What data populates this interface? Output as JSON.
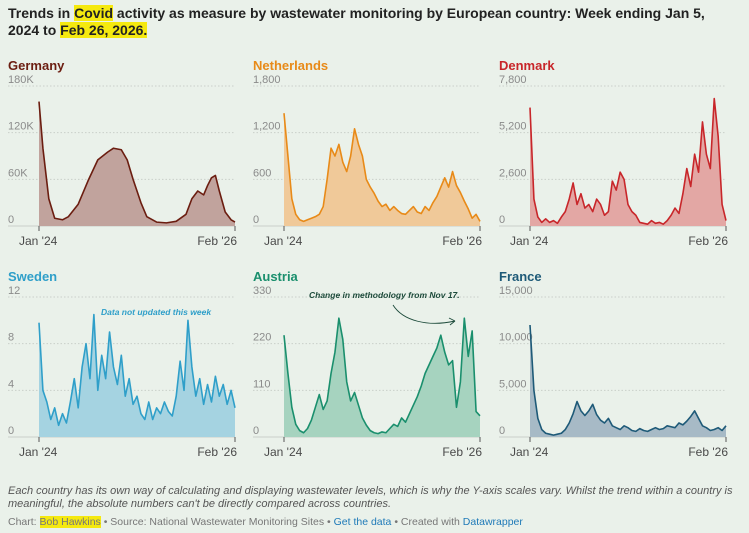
{
  "title": {
    "prefix": "Trends in ",
    "highlight1": "Covid",
    "middle": " activity as measure by wastewater monitoring by European country: Week ending Jan 5, 2024 to ",
    "highlight2": "Feb 26, 2026."
  },
  "note": "Each country has its own way of calculating and displaying wastewater levels, which is why the Y-axis scales vary. Whilst the trend within a country is meaningful, the absolute numbers can't be directly compared across countries.",
  "credit": {
    "chart_label": "Chart: ",
    "author": "Bob Hawkins",
    "source_text": " • Source: National Wastewater Monitoring Sites • ",
    "get_data": "Get the data",
    "created_text": " • Created with ",
    "tool": "Datawrapper"
  },
  "chart_data": [
    {
      "type": "area",
      "title": "Germany",
      "color": "#6b1d10",
      "fill": "#c1a39d",
      "ylim": [
        0,
        180000
      ],
      "yticks": [
        0,
        60000,
        120000,
        180000
      ],
      "ytick_labels": [
        "0",
        "60K",
        "120K",
        "180K"
      ],
      "xlabels": [
        "Jan '24",
        "Feb '26"
      ],
      "x": [
        0,
        0.02,
        0.05,
        0.08,
        0.12,
        0.15,
        0.2,
        0.25,
        0.3,
        0.35,
        0.38,
        0.42,
        0.45,
        0.48,
        0.52,
        0.55,
        0.6,
        0.65,
        0.7,
        0.75,
        0.78,
        0.81,
        0.84,
        0.86,
        0.88,
        0.9,
        0.92,
        0.95,
        0.98,
        1
      ],
      "values": [
        160000,
        100000,
        35000,
        10000,
        8000,
        12000,
        28000,
        58000,
        85000,
        95000,
        100000,
        98000,
        85000,
        60000,
        30000,
        12000,
        5000,
        4000,
        6000,
        15000,
        35000,
        45000,
        40000,
        52000,
        62000,
        65000,
        45000,
        18000,
        8000,
        5000
      ]
    },
    {
      "type": "area",
      "title": "Netherlands",
      "color": "#e88a18",
      "fill": "#f0c999",
      "ylim": [
        0,
        1800
      ],
      "yticks": [
        0,
        600,
        1200,
        1800
      ],
      "ytick_labels": [
        "0",
        "600",
        "1,200",
        "1,800"
      ],
      "xlabels": [
        "Jan '24",
        "Feb '26"
      ],
      "x": [
        0,
        0.02,
        0.04,
        0.06,
        0.08,
        0.1,
        0.12,
        0.14,
        0.16,
        0.18,
        0.2,
        0.22,
        0.24,
        0.26,
        0.28,
        0.3,
        0.32,
        0.34,
        0.36,
        0.38,
        0.4,
        0.42,
        0.44,
        0.46,
        0.48,
        0.5,
        0.52,
        0.54,
        0.56,
        0.58,
        0.6,
        0.62,
        0.64,
        0.66,
        0.68,
        0.7,
        0.72,
        0.74,
        0.76,
        0.78,
        0.8,
        0.82,
        0.84,
        0.86,
        0.88,
        0.9,
        0.92,
        0.94,
        0.96,
        0.98,
        1
      ],
      "values": [
        1450,
        900,
        350,
        150,
        80,
        60,
        80,
        100,
        120,
        150,
        250,
        600,
        1000,
        900,
        1050,
        820,
        700,
        900,
        1250,
        1050,
        900,
        600,
        500,
        420,
        320,
        250,
        280,
        200,
        250,
        200,
        160,
        150,
        200,
        250,
        180,
        160,
        250,
        200,
        300,
        380,
        500,
        620,
        500,
        700,
        520,
        430,
        320,
        220,
        100,
        150,
        60
      ]
    },
    {
      "type": "area",
      "title": "Denmark",
      "color": "#c8262a",
      "fill": "#e3a7a4",
      "ylim": [
        0,
        7800
      ],
      "yticks": [
        0,
        2600,
        5200,
        7800
      ],
      "ytick_labels": [
        "0",
        "2,600",
        "5,200",
        "7,800"
      ],
      "xlabels": [
        "Jan '24",
        "Feb '26"
      ],
      "x": [
        0,
        0.02,
        0.04,
        0.06,
        0.08,
        0.1,
        0.12,
        0.14,
        0.16,
        0.18,
        0.2,
        0.22,
        0.24,
        0.26,
        0.28,
        0.3,
        0.32,
        0.34,
        0.36,
        0.38,
        0.4,
        0.42,
        0.44,
        0.46,
        0.48,
        0.5,
        0.52,
        0.54,
        0.56,
        0.58,
        0.6,
        0.62,
        0.64,
        0.66,
        0.68,
        0.7,
        0.72,
        0.74,
        0.76,
        0.78,
        0.8,
        0.82,
        0.84,
        0.86,
        0.88,
        0.9,
        0.92,
        0.94,
        0.96,
        0.98,
        1
      ],
      "values": [
        6600,
        1500,
        500,
        200,
        400,
        200,
        300,
        150,
        500,
        800,
        1500,
        2400,
        1200,
        1800,
        1000,
        1200,
        800,
        1500,
        1200,
        600,
        800,
        2500,
        2000,
        3000,
        2600,
        1200,
        800,
        600,
        200,
        150,
        100,
        300,
        150,
        200,
        100,
        300,
        600,
        1000,
        700,
        1800,
        3200,
        2200,
        4000,
        3000,
        5800,
        4000,
        3200,
        7100,
        5000,
        1200,
        300
      ]
    },
    {
      "type": "area",
      "title": "Sweden",
      "color": "#2f9fc9",
      "fill": "#a5d3e1",
      "ylim": [
        0,
        12
      ],
      "yticks": [
        0,
        4,
        8,
        12
      ],
      "ytick_labels": [
        "0",
        "4",
        "8",
        "12"
      ],
      "xlabels": [
        "Jan '24",
        "Feb '26"
      ],
      "annotation": "Data not updated this week",
      "x": [
        0,
        0.02,
        0.04,
        0.06,
        0.08,
        0.1,
        0.12,
        0.14,
        0.16,
        0.18,
        0.2,
        0.22,
        0.24,
        0.26,
        0.28,
        0.3,
        0.32,
        0.34,
        0.36,
        0.38,
        0.4,
        0.42,
        0.44,
        0.46,
        0.48,
        0.5,
        0.52,
        0.54,
        0.56,
        0.58,
        0.6,
        0.62,
        0.64,
        0.66,
        0.68,
        0.7,
        0.72,
        0.74,
        0.76,
        0.78,
        0.8,
        0.82,
        0.84,
        0.86,
        0.88,
        0.9,
        0.92,
        0.94,
        0.96,
        0.98,
        1
      ],
      "values": [
        9.8,
        4,
        3,
        1.5,
        2.5,
        1,
        2,
        1.2,
        3,
        5,
        2.5,
        6,
        8,
        5,
        10.5,
        4,
        7,
        5,
        9,
        6,
        4.5,
        7,
        3.5,
        5,
        2.8,
        3.5,
        2,
        1.5,
        3,
        1.5,
        2.5,
        2,
        3,
        2.2,
        1.8,
        3.5,
        6.5,
        4,
        10,
        6,
        3.5,
        5,
        2.8,
        4.5,
        3,
        5.2,
        3.5,
        4.5,
        2.8,
        4,
        2.5
      ]
    },
    {
      "type": "area",
      "title": "Austria",
      "color": "#1a8f6d",
      "fill": "#a6d3bf",
      "ylim": [
        0,
        330
      ],
      "yticks": [
        0,
        110,
        220,
        330
      ],
      "ytick_labels": [
        "0",
        "110",
        "220",
        "330"
      ],
      "xlabels": [
        "Jan '24",
        "Feb '26"
      ],
      "annotation": "Change in methodology from Nov 17.",
      "x": [
        0,
        0.02,
        0.04,
        0.06,
        0.08,
        0.1,
        0.12,
        0.14,
        0.16,
        0.18,
        0.2,
        0.22,
        0.24,
        0.26,
        0.28,
        0.3,
        0.32,
        0.34,
        0.36,
        0.38,
        0.4,
        0.42,
        0.44,
        0.46,
        0.48,
        0.5,
        0.52,
        0.54,
        0.56,
        0.58,
        0.6,
        0.62,
        0.64,
        0.66,
        0.68,
        0.7,
        0.72,
        0.74,
        0.76,
        0.78,
        0.8,
        0.82,
        0.84,
        0.86,
        0.88,
        0.9,
        0.92,
        0.94,
        0.96,
        0.98,
        1
      ],
      "values": [
        240,
        150,
        70,
        30,
        15,
        10,
        20,
        40,
        70,
        100,
        65,
        85,
        150,
        200,
        280,
        230,
        130,
        85,
        105,
        75,
        45,
        28,
        15,
        10,
        8,
        12,
        10,
        20,
        30,
        25,
        45,
        35,
        55,
        75,
        95,
        120,
        150,
        170,
        190,
        210,
        240,
        200,
        170,
        180,
        70,
        130,
        280,
        190,
        250,
        60,
        50
      ]
    },
    {
      "type": "area",
      "title": "France",
      "color": "#1e5a78",
      "fill": "#a7bac6",
      "ylim": [
        0,
        15000
      ],
      "yticks": [
        0,
        5000,
        10000,
        15000
      ],
      "ytick_labels": [
        "0",
        "5,000",
        "10,000",
        "15,000"
      ],
      "xlabels": [
        "Jan '24",
        "Feb '26"
      ],
      "x": [
        0,
        0.02,
        0.04,
        0.06,
        0.08,
        0.1,
        0.12,
        0.14,
        0.16,
        0.18,
        0.2,
        0.22,
        0.24,
        0.26,
        0.28,
        0.3,
        0.32,
        0.34,
        0.36,
        0.38,
        0.4,
        0.42,
        0.44,
        0.46,
        0.48,
        0.5,
        0.52,
        0.54,
        0.56,
        0.58,
        0.6,
        0.62,
        0.64,
        0.66,
        0.68,
        0.7,
        0.72,
        0.74,
        0.76,
        0.78,
        0.8,
        0.82,
        0.84,
        0.86,
        0.88,
        0.9,
        0.92,
        0.94,
        0.96,
        0.98,
        1
      ],
      "values": [
        12000,
        5000,
        2000,
        800,
        400,
        300,
        200,
        300,
        400,
        800,
        1500,
        2500,
        3800,
        2800,
        2300,
        2800,
        3500,
        2400,
        1800,
        1500,
        2000,
        1200,
        1000,
        800,
        1200,
        1000,
        700,
        600,
        900,
        700,
        600,
        800,
        1000,
        800,
        900,
        1200,
        1100,
        1000,
        1500,
        1300,
        1700,
        2200,
        2800,
        2000,
        1200,
        1000,
        700,
        800,
        1000,
        700,
        1200
      ]
    }
  ]
}
